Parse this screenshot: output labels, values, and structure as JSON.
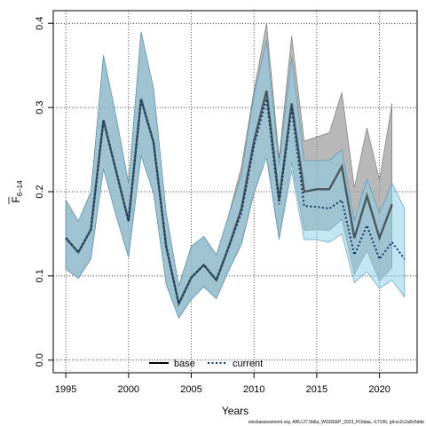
{
  "chart_data": {
    "type": "line",
    "xlabel": "Years",
    "ylabel": "F",
    "ylabel_sub": "6–14",
    "xlim": [
      1994,
      2023
    ],
    "ylim": [
      -0.015,
      0.415
    ],
    "xticks": [
      1995,
      2000,
      2005,
      2010,
      2015,
      2020
    ],
    "yticks": [
      0.0,
      0.1,
      0.2,
      0.3,
      0.4
    ],
    "ytick_labels": [
      "0.0",
      "0.1",
      "0.2",
      "0.3",
      "0.4"
    ],
    "grid": true,
    "legend_position": "bottom-center",
    "x": [
      1995,
      1996,
      1997,
      1998,
      1999,
      2000,
      2001,
      2002,
      2003,
      2004,
      2005,
      2006,
      2007,
      2008,
      2009,
      2010,
      2011,
      2012,
      2013,
      2014,
      2015,
      2016,
      2017,
      2018,
      2019,
      2020,
      2021,
      2022
    ],
    "series": [
      {
        "name": "base",
        "color": "#000000",
        "line": "solid",
        "band_color": "#a0a0a0",
        "values": [
          0.145,
          0.128,
          0.155,
          0.285,
          0.225,
          0.165,
          0.31,
          0.258,
          0.135,
          0.067,
          0.098,
          0.113,
          0.095,
          0.135,
          0.18,
          0.26,
          0.32,
          0.19,
          0.305,
          0.2,
          0.203,
          0.203,
          0.23,
          0.145,
          0.195,
          0.145,
          0.185,
          null
        ],
        "lower": [
          0.108,
          0.097,
          0.12,
          0.227,
          0.172,
          0.122,
          0.243,
          0.198,
          0.09,
          0.05,
          0.072,
          0.087,
          0.073,
          0.107,
          0.14,
          0.2,
          0.245,
          0.146,
          0.234,
          0.154,
          0.155,
          0.154,
          0.167,
          0.102,
          0.13,
          0.094,
          0.11,
          null
        ],
        "upper": [
          0.19,
          0.165,
          0.2,
          0.362,
          0.29,
          0.21,
          0.39,
          0.322,
          0.175,
          0.088,
          0.135,
          0.147,
          0.125,
          0.173,
          0.23,
          0.32,
          0.4,
          0.24,
          0.385,
          0.26,
          0.265,
          0.27,
          0.318,
          0.205,
          0.276,
          0.214,
          0.305,
          null
        ]
      },
      {
        "name": "current",
        "color": "#0d3b66",
        "line": "dotted",
        "band_color": "#87ceeb",
        "values": [
          0.145,
          0.128,
          0.155,
          0.285,
          0.225,
          0.165,
          0.31,
          0.258,
          0.135,
          0.067,
          0.098,
          0.113,
          0.095,
          0.135,
          0.175,
          0.255,
          0.31,
          0.185,
          0.3,
          0.183,
          0.182,
          0.18,
          0.19,
          0.125,
          0.16,
          0.12,
          0.14,
          0.12
        ],
        "lower": [
          0.108,
          0.097,
          0.12,
          0.227,
          0.172,
          0.122,
          0.243,
          0.198,
          0.09,
          0.05,
          0.072,
          0.087,
          0.073,
          0.107,
          0.137,
          0.198,
          0.24,
          0.143,
          0.225,
          0.143,
          0.143,
          0.14,
          0.15,
          0.092,
          0.105,
          0.085,
          0.095,
          0.075
        ],
        "upper": [
          0.19,
          0.165,
          0.2,
          0.362,
          0.29,
          0.21,
          0.39,
          0.322,
          0.175,
          0.088,
          0.135,
          0.147,
          0.125,
          0.173,
          0.22,
          0.315,
          0.38,
          0.232,
          0.36,
          0.237,
          0.237,
          0.237,
          0.25,
          0.165,
          0.215,
          0.175,
          0.21,
          0.18
        ]
      }
    ],
    "footnote": "stockassessment.org, ARU.27.5b6a_WGDEEP_2023_FOdata, r17106, git:ec2c2a0c6dde"
  }
}
